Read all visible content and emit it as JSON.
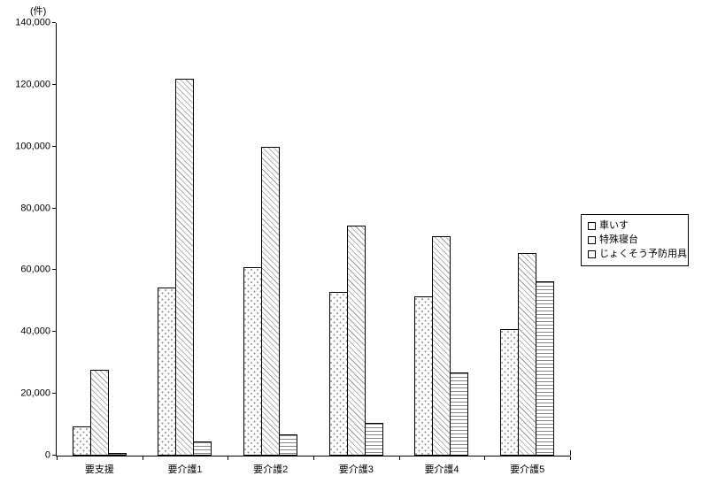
{
  "chart_data": {
    "type": "bar",
    "title": "",
    "unit_label": "(件)",
    "categories": [
      "要支援",
      "要介護1",
      "要介護2",
      "要介護3",
      "要介護4",
      "要介護5"
    ],
    "series": [
      {
        "name": "車いす",
        "pattern": "dots",
        "values": [
          9500,
          54500,
          61000,
          53000,
          51500,
          41000
        ]
      },
      {
        "name": "特殊寝台",
        "pattern": "diagonal",
        "values": [
          27800,
          122000,
          100000,
          74500,
          71000,
          65500
        ]
      },
      {
        "name": "じょくそう予防用具",
        "pattern": "hlines",
        "values": [
          900,
          4500,
          7000,
          10500,
          27000,
          56500
        ]
      }
    ],
    "xlabel": "",
    "ylabel": "(件)",
    "ylim": [
      0,
      140000
    ],
    "ytick_step": 20000,
    "ytick_labels": [
      "0",
      "20,000",
      "40,000",
      "60,000",
      "80,000",
      "100,000",
      "120,000",
      "140,000"
    ],
    "legend_position": "right",
    "grid": false
  },
  "colors": {
    "background": "#ffffff",
    "axis": "#000000",
    "bar_border": "#000000",
    "pattern_ink": "#8f8f8f"
  }
}
